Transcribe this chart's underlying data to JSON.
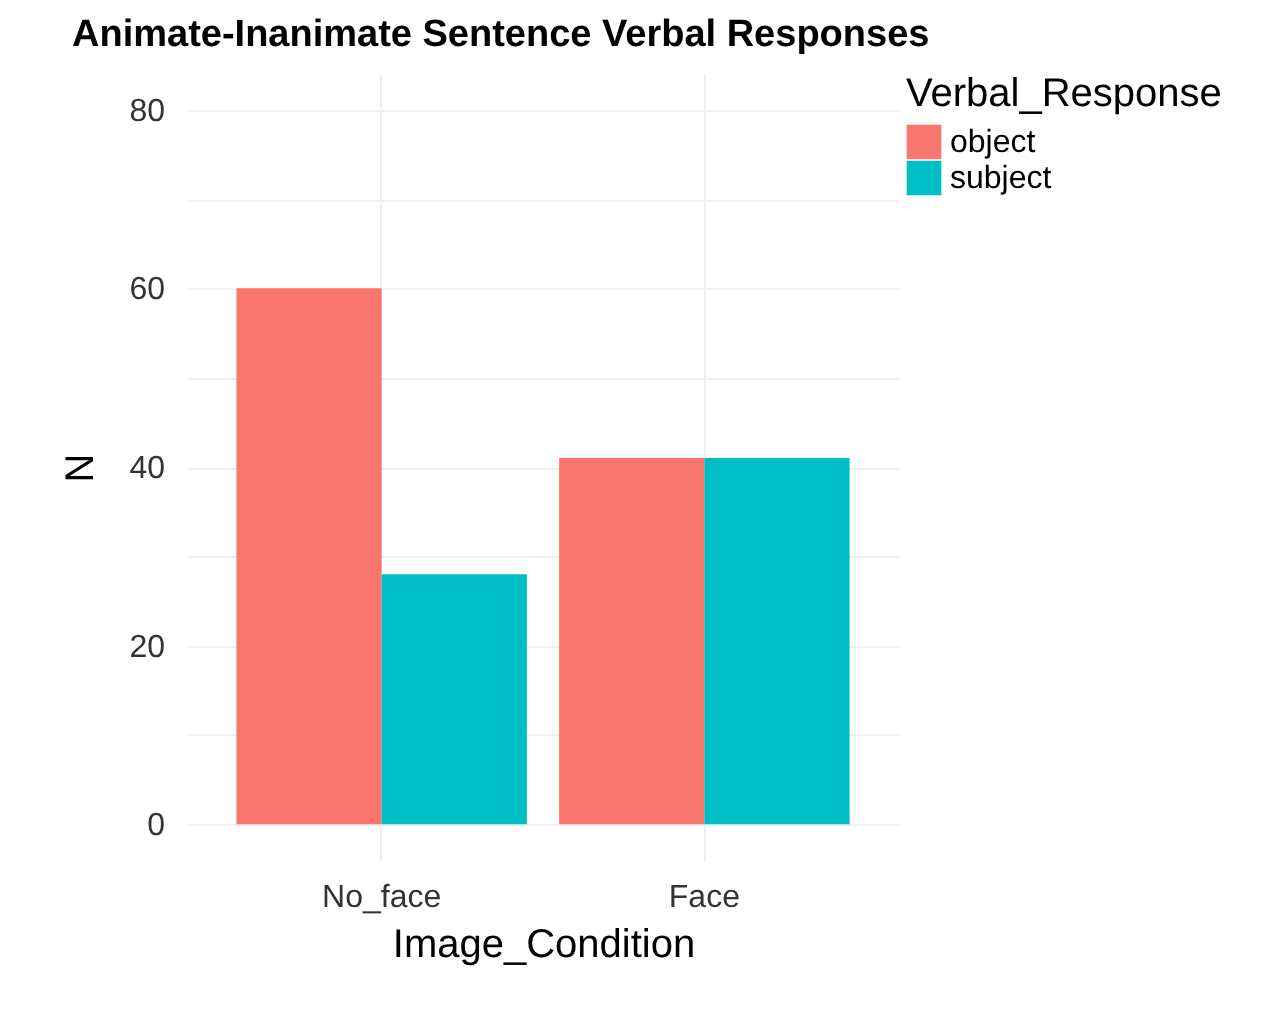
{
  "chart_data": {
    "type": "bar",
    "title": "Animate-Inanimate Sentence Verbal Responses",
    "xlabel": "Image_Condition",
    "ylabel": "N",
    "legend_title": "Verbal_Response",
    "categories": [
      "No_face",
      "Face"
    ],
    "series": [
      {
        "name": "object",
        "color": "#f8766d",
        "values": [
          60,
          41
        ]
      },
      {
        "name": "subject",
        "color": "#00bfc4",
        "values": [
          28,
          41
        ]
      }
    ],
    "ylim": [
      -4,
      84
    ],
    "yticks": [
      0,
      {
        "value": 10,
        "label": null
      },
      20,
      {
        "value": 30,
        "label": null
      },
      40,
      {
        "value": 50,
        "label": null
      },
      60,
      {
        "value": 70,
        "label": null
      },
      80
    ],
    "grid": true,
    "legend": "right"
  }
}
